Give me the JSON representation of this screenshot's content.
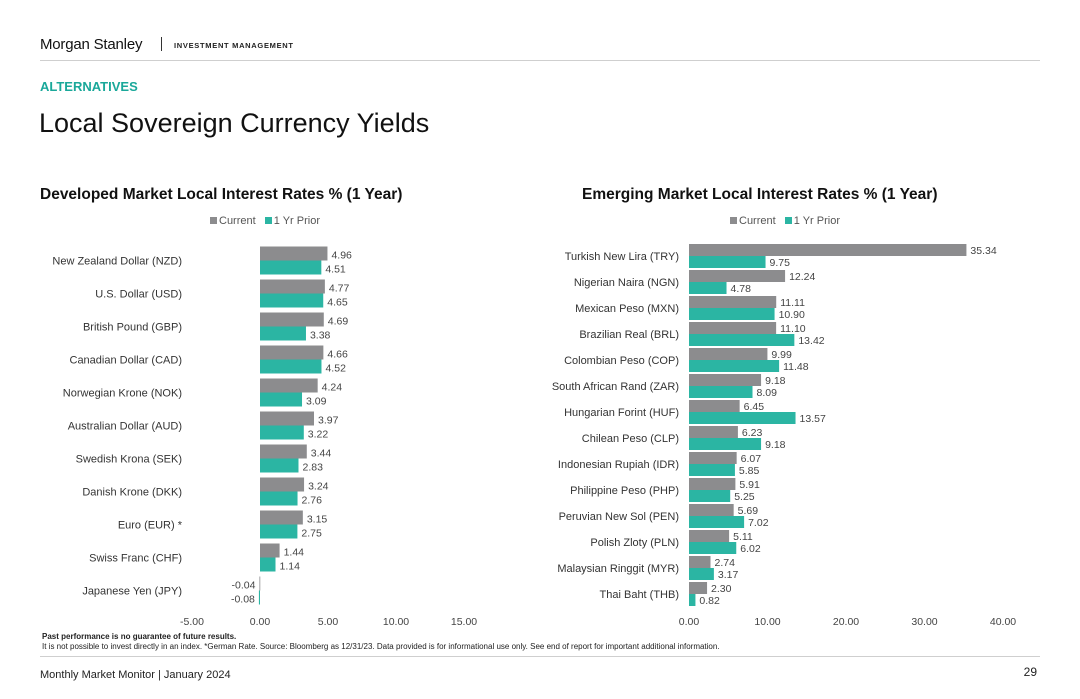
{
  "header": {
    "brand": "Morgan Stanley",
    "subtitle": "INVESTMENT MANAGEMENT"
  },
  "section": "ALTERNATIVES",
  "title": "Local Sovereign Currency Yields",
  "colors": {
    "current": "#8c8c8e",
    "prior": "#2bb5a3",
    "accent": "#1aa89a"
  },
  "chart_data": [
    {
      "type": "bar",
      "orientation": "horizontal",
      "title": "Developed Market Local Interest Rates % (1 Year)",
      "legend": "top",
      "categories": [
        "New Zealand Dollar (NZD)",
        "U.S. Dollar (USD)",
        "British Pound (GBP)",
        "Canadian Dollar (CAD)",
        "Norwegian Krone (NOK)",
        "Australian Dollar (AUD)",
        "Swedish Krona (SEK)",
        "Danish Krone (DKK)",
        "Euro (EUR) *",
        "Swiss Franc (CHF)",
        "Japanese Yen (JPY)"
      ],
      "series": [
        {
          "name": "Current",
          "values": [
            4.96,
            4.77,
            4.69,
            4.66,
            4.24,
            3.97,
            3.44,
            3.24,
            3.15,
            1.44,
            -0.04
          ]
        },
        {
          "name": "1 Yr Prior",
          "values": [
            4.51,
            4.65,
            3.38,
            4.52,
            3.09,
            3.22,
            2.83,
            2.76,
            2.75,
            1.14,
            -0.08
          ]
        }
      ],
      "xlim": [
        -5,
        15
      ],
      "ticks": [
        "-5.00",
        "0.00",
        "5.00",
        "10.00",
        "15.00"
      ],
      "tick_values": [
        -5,
        0,
        5,
        10,
        15
      ],
      "grid": false
    },
    {
      "type": "bar",
      "orientation": "horizontal",
      "title": "Emerging Market Local Interest Rates % (1 Year)",
      "legend": "top",
      "categories": [
        "Turkish New Lira (TRY)",
        "Nigerian Naira (NGN)",
        "Mexican Peso (MXN)",
        "Brazilian Real (BRL)",
        "Colombian Peso (COP)",
        "South African Rand (ZAR)",
        "Hungarian Forint (HUF)",
        "Chilean Peso (CLP)",
        "Indonesian Rupiah (IDR)",
        "Philippine Peso (PHP)",
        "Peruvian New Sol (PEN)",
        "Polish Zloty (PLN)",
        "Malaysian Ringgit (MYR)",
        "Thai Baht (THB)"
      ],
      "series": [
        {
          "name": "Current",
          "values": [
            35.34,
            12.24,
            11.11,
            11.1,
            9.99,
            9.18,
            6.45,
            6.23,
            6.07,
            5.91,
            5.69,
            5.11,
            2.74,
            2.3
          ]
        },
        {
          "name": "1 Yr Prior",
          "values": [
            9.75,
            4.78,
            10.9,
            13.42,
            11.48,
            8.09,
            13.57,
            9.18,
            5.85,
            5.25,
            7.02,
            6.02,
            3.17,
            0.82
          ]
        }
      ],
      "xlim": [
        0,
        40
      ],
      "ticks": [
        "0.00",
        "10.00",
        "20.00",
        "30.00",
        "40.00"
      ],
      "tick_values": [
        0,
        10,
        20,
        30,
        40
      ],
      "grid": false
    }
  ],
  "notes": {
    "line1": "Past performance is no guarantee of future results.",
    "line2": "It is not possible to invest directly in an index. *German Rate. Source: Bloomberg as 12/31/23. Data provided is for informational use only. See end of report for important additional information."
  },
  "footer": {
    "text": "Monthly Market Monitor | January 2024",
    "page": "29"
  }
}
